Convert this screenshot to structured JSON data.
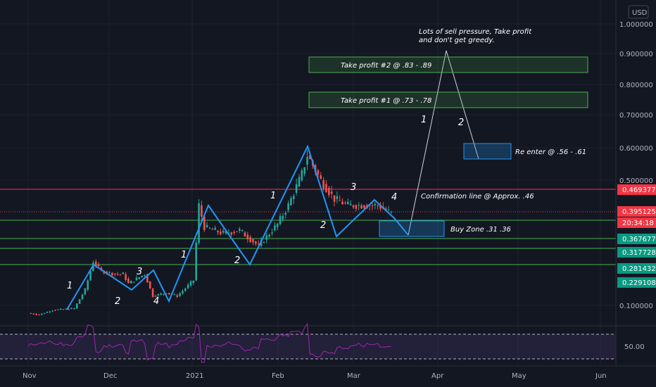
{
  "currency": "USD",
  "chart_data": {
    "type": "candlestick",
    "x_ticks": [
      "Nov",
      "Dec",
      "2021",
      "Feb",
      "Mar",
      "Apr",
      "May",
      "Jun"
    ],
    "y_ticks": [
      "1.000000",
      "0.900000",
      "0.800000",
      "0.700000",
      "0.600000",
      "0.500000",
      "0.100000"
    ],
    "ylim": [
      0.05,
      1.0
    ],
    "price_series": [
      {
        "x": "Oct 20",
        "close": 0.08
      },
      {
        "x": "Nov 1",
        "close": 0.075
      },
      {
        "x": "Nov 5",
        "close": 0.07
      },
      {
        "x": "Nov 10",
        "close": 0.085
      },
      {
        "x": "Nov 18",
        "close": 0.09
      },
      {
        "x": "Nov 22",
        "close": 0.15
      },
      {
        "x": "Nov 25",
        "close": 0.24
      },
      {
        "x": "Nov 28",
        "close": 0.21
      },
      {
        "x": "Dec 3",
        "close": 0.2
      },
      {
        "x": "Dec 6",
        "close": 0.2
      },
      {
        "x": "Dec 8",
        "close": 0.17
      },
      {
        "x": "Dec 14",
        "close": 0.2
      },
      {
        "x": "Dec 17",
        "close": 0.13
      },
      {
        "x": "Dec 22",
        "close": 0.14
      },
      {
        "x": "Dec 26",
        "close": 0.13
      },
      {
        "x": "Jan 1",
        "close": 0.18
      },
      {
        "x": "Jan 3",
        "close": 0.42
      },
      {
        "x": "Jan 5",
        "close": 0.35
      },
      {
        "x": "Jan 12",
        "close": 0.33
      },
      {
        "x": "Jan 18",
        "close": 0.34
      },
      {
        "x": "Jan 25",
        "close": 0.29
      },
      {
        "x": "Feb 1",
        "close": 0.36
      },
      {
        "x": "Feb 5",
        "close": 0.42
      },
      {
        "x": "Feb 10",
        "close": 0.52
      },
      {
        "x": "Feb 12",
        "close": 0.58
      },
      {
        "x": "Feb 17",
        "close": 0.5
      },
      {
        "x": "Feb 22",
        "close": 0.44
      },
      {
        "x": "Feb 27",
        "close": 0.42
      },
      {
        "x": "Mar 4",
        "close": 0.42
      },
      {
        "x": "Mar 10",
        "close": 0.42
      },
      {
        "x": "Mar 15",
        "close": 0.395
      }
    ],
    "horizontal_lines": [
      {
        "label": "0.469377",
        "color": "#f23645"
      },
      {
        "label": "0.395125",
        "color": "#f23645"
      },
      {
        "label": "0.367677",
        "color": "#089981"
      },
      {
        "label": "0.317728",
        "color": "#089981"
      },
      {
        "label": "0.281432",
        "color": "#089981"
      },
      {
        "label": "0.229108",
        "color": "#089981"
      }
    ],
    "countdown": "20:34:18",
    "annotations": [
      "Lots of sell pressure, Take profit",
      "and don't get greedy.",
      "Take profit #2 @ .83 - .89",
      "Take profit  #1 @ .73 - .78",
      "Re enter @ .56 - .61",
      "Confirmation line @ Approx. .46",
      "Buy Zone .31 .36"
    ],
    "wave_labels": [
      "1",
      "2",
      "3",
      "4",
      "1",
      "2",
      "1",
      "2",
      "3",
      "4",
      "1",
      "2"
    ],
    "rsi": {
      "label": "50.00"
    }
  }
}
